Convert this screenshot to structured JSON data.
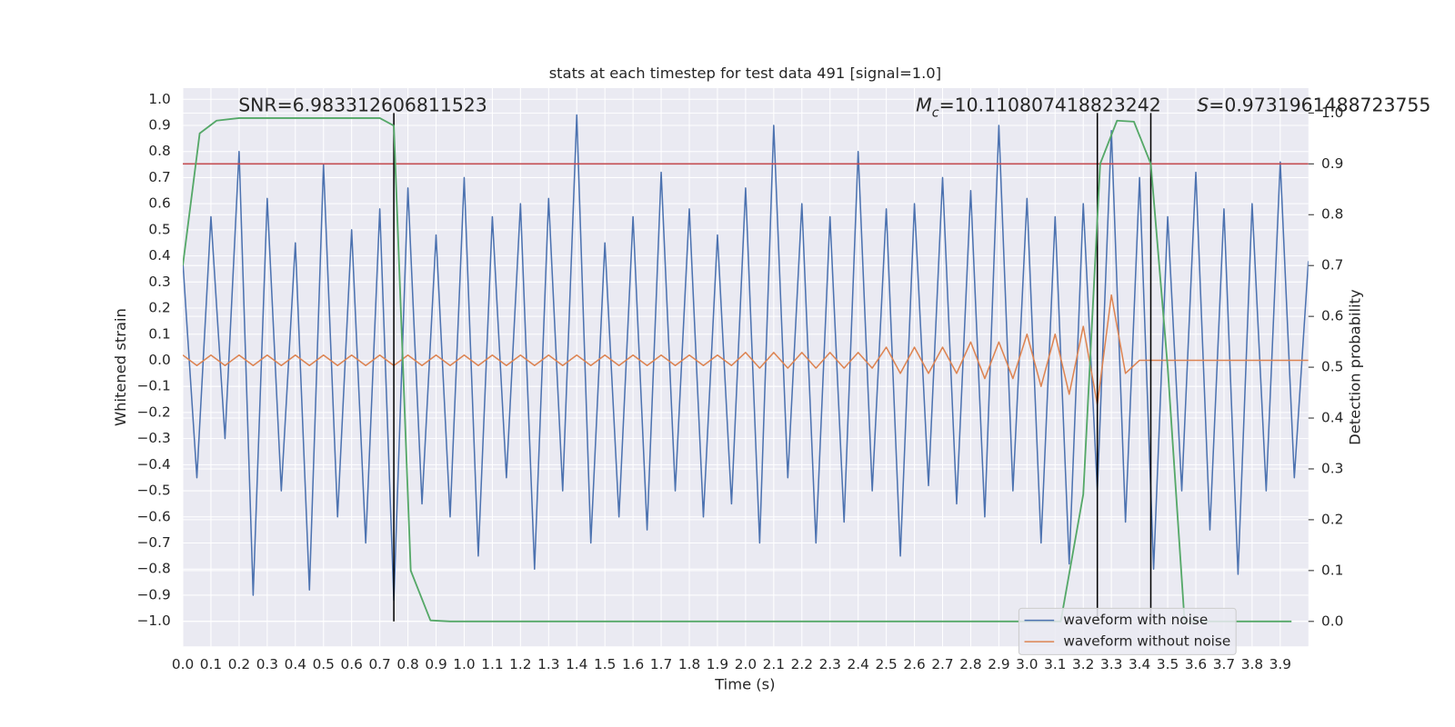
{
  "chart_data": {
    "type": "line",
    "title": "stats at each timestep for test data 491 [signal=1.0]",
    "xlabel": "Time (s)",
    "ylabel": "Whitened strain",
    "y2label": "Detection probability",
    "annotations": {
      "snr": "SNR=6.983312606811523",
      "mc": {
        "symbol": "M",
        "sub": "c",
        "text": "=10.110807418823242"
      },
      "s": {
        "symbol": "S",
        "text": "=0.9731961488723755"
      }
    },
    "xlim": [
      0,
      4
    ],
    "ylim": [
      -1.096,
      1.043
    ],
    "y2lim": [
      -0.049,
      1.049
    ],
    "xticks": [
      {
        "value": 0,
        "label": "0.0"
      },
      0.1,
      0.2,
      0.3,
      0.4,
      0.5,
      0.6,
      0.7,
      0.8,
      0.9,
      {
        "value": 1,
        "label": "1.0"
      },
      1.1,
      1.2,
      1.3,
      1.4,
      1.5,
      1.6,
      1.7,
      1.8,
      1.9,
      {
        "value": 2,
        "label": "2.0"
      },
      2.1,
      2.2,
      2.3,
      2.4,
      2.5,
      2.6,
      2.7,
      2.8,
      2.9,
      {
        "value": 3,
        "label": "3.0"
      },
      3.1,
      3.2,
      3.3,
      3.4,
      3.5,
      3.6,
      3.7,
      3.8,
      3.9
    ],
    "yticks": [
      {
        "value": -1,
        "label": "−1.0"
      },
      {
        "value": -0.9,
        "label": "−0.9"
      },
      {
        "value": -0.8,
        "label": "−0.8"
      },
      {
        "value": -0.7,
        "label": "−0.7"
      },
      {
        "value": -0.6,
        "label": "−0.6"
      },
      {
        "value": -0.5,
        "label": "−0.5"
      },
      {
        "value": -0.4,
        "label": "−0.4"
      },
      {
        "value": -0.3,
        "label": "−0.3"
      },
      {
        "value": -0.2,
        "label": "−0.2"
      },
      {
        "value": -0.1,
        "label": "−0.1"
      },
      {
        "value": 0,
        "label": "0.0"
      },
      0.1,
      0.2,
      0.3,
      0.4,
      0.5,
      0.6,
      0.7,
      0.8,
      0.9,
      {
        "value": 1,
        "label": "1.0"
      }
    ],
    "y2ticks": [
      {
        "value": 0,
        "label": "0.0"
      },
      0.1,
      0.2,
      0.3,
      0.4,
      0.5,
      0.6,
      0.7,
      0.8,
      0.9,
      {
        "value": 1,
        "label": "1.0"
      }
    ],
    "grid": true,
    "legend": "lower right",
    "x": [
      0,
      0.05,
      0.1,
      0.15,
      0.2,
      0.25,
      0.3,
      0.35,
      0.4,
      0.45,
      0.5,
      0.55,
      0.6,
      0.65,
      0.7,
      0.75,
      0.8,
      0.85,
      0.9,
      0.95,
      1,
      1.05,
      1.1,
      1.15,
      1.2,
      1.25,
      1.3,
      1.35,
      1.4,
      1.45,
      1.5,
      1.55,
      1.6,
      1.65,
      1.7,
      1.75,
      1.8,
      1.85,
      1.9,
      1.95,
      2,
      2.05,
      2.1,
      2.15,
      2.2,
      2.25,
      2.3,
      2.35,
      2.4,
      2.45,
      2.5,
      2.55,
      2.6,
      2.65,
      2.7,
      2.75,
      2.8,
      2.85,
      2.9,
      2.95,
      3,
      3.05,
      3.1,
      3.15,
      3.2,
      3.25,
      3.3,
      3.35,
      3.4,
      3.45,
      3.5,
      3.55,
      3.6,
      3.65,
      3.7,
      3.75,
      3.8,
      3.85,
      3.9,
      3.95,
      4
    ],
    "series": [
      {
        "name": "waveform with noise",
        "color": "#4c72b0",
        "values": [
          0.38,
          -0.45,
          0.55,
          -0.3,
          0.8,
          -0.9,
          0.62,
          -0.5,
          0.45,
          -0.88,
          0.75,
          -0.6,
          0.5,
          -0.7,
          0.58,
          -0.92,
          0.66,
          -0.55,
          0.48,
          -0.6,
          0.7,
          -0.75,
          0.55,
          -0.45,
          0.6,
          -0.8,
          0.62,
          -0.5,
          0.94,
          -0.7,
          0.45,
          -0.6,
          0.55,
          -0.65,
          0.72,
          -0.5,
          0.58,
          -0.6,
          0.48,
          -0.55,
          0.66,
          -0.7,
          0.9,
          -0.45,
          0.6,
          -0.7,
          0.55,
          -0.62,
          0.8,
          -0.5,
          0.58,
          -0.75,
          0.6,
          -0.48,
          0.7,
          -0.55,
          0.65,
          -0.6,
          0.9,
          -0.5,
          0.62,
          -0.7,
          0.55,
          -0.78,
          0.6,
          -0.5,
          0.88,
          -0.62,
          0.7,
          -0.8,
          0.55,
          -0.5,
          0.72,
          -0.65,
          0.58,
          -0.82,
          0.6,
          -0.5,
          0.76,
          -0.45,
          0.38
        ]
      },
      {
        "name": "waveform without noise",
        "color": "#dd8452",
        "values": [
          0.02,
          -0.02,
          0.02,
          -0.02,
          0.02,
          -0.02,
          0.02,
          -0.02,
          0.02,
          -0.02,
          0.02,
          -0.02,
          0.02,
          -0.02,
          0.02,
          -0.02,
          0.02,
          -0.02,
          0.02,
          -0.02,
          0.02,
          -0.02,
          0.02,
          -0.02,
          0.02,
          -0.02,
          0.02,
          -0.02,
          0.02,
          -0.02,
          0.02,
          -0.02,
          0.02,
          -0.02,
          0.02,
          -0.02,
          0.02,
          -0.02,
          0.02,
          -0.02,
          0.03,
          -0.03,
          0.03,
          -0.03,
          0.03,
          -0.03,
          0.03,
          -0.03,
          0.03,
          -0.03,
          0.05,
          -0.05,
          0.05,
          -0.05,
          0.05,
          -0.05,
          0.07,
          -0.07,
          0.07,
          -0.07,
          0.1,
          -0.1,
          0.1,
          -0.13,
          0.13,
          -0.17,
          0.25,
          -0.05,
          0,
          0,
          0,
          0,
          0,
          0,
          0,
          0,
          0,
          0,
          0,
          0,
          0
        ]
      }
    ],
    "probability": {
      "axis": "y2",
      "color": "#55a868",
      "x": [
        0,
        0.06,
        0.12,
        0.2,
        0.3,
        0.4,
        0.5,
        0.6,
        0.7,
        0.75,
        0.81,
        0.88,
        0.95,
        1.2,
        1.5,
        2,
        2.5,
        3,
        3.12,
        3.2,
        3.26,
        3.32,
        3.38,
        3.44,
        3.5,
        3.56,
        3.94
      ],
      "values": [
        0.7,
        0.96,
        0.985,
        0.99,
        0.99,
        0.99,
        0.99,
        0.99,
        0.99,
        0.975,
        0.1,
        0.002,
        0,
        0,
        0,
        0,
        0,
        0,
        0,
        0.25,
        0.9,
        0.985,
        0.983,
        0.9,
        0.5,
        0,
        0
      ]
    },
    "threshold": {
      "axis": "y2",
      "value": 0.9,
      "color": "#c44e52"
    },
    "vlines": {
      "axis": "y2",
      "x": [
        0.75,
        3.25,
        3.44
      ],
      "ymin": 0,
      "ymax": 1,
      "color": "#000000"
    }
  }
}
